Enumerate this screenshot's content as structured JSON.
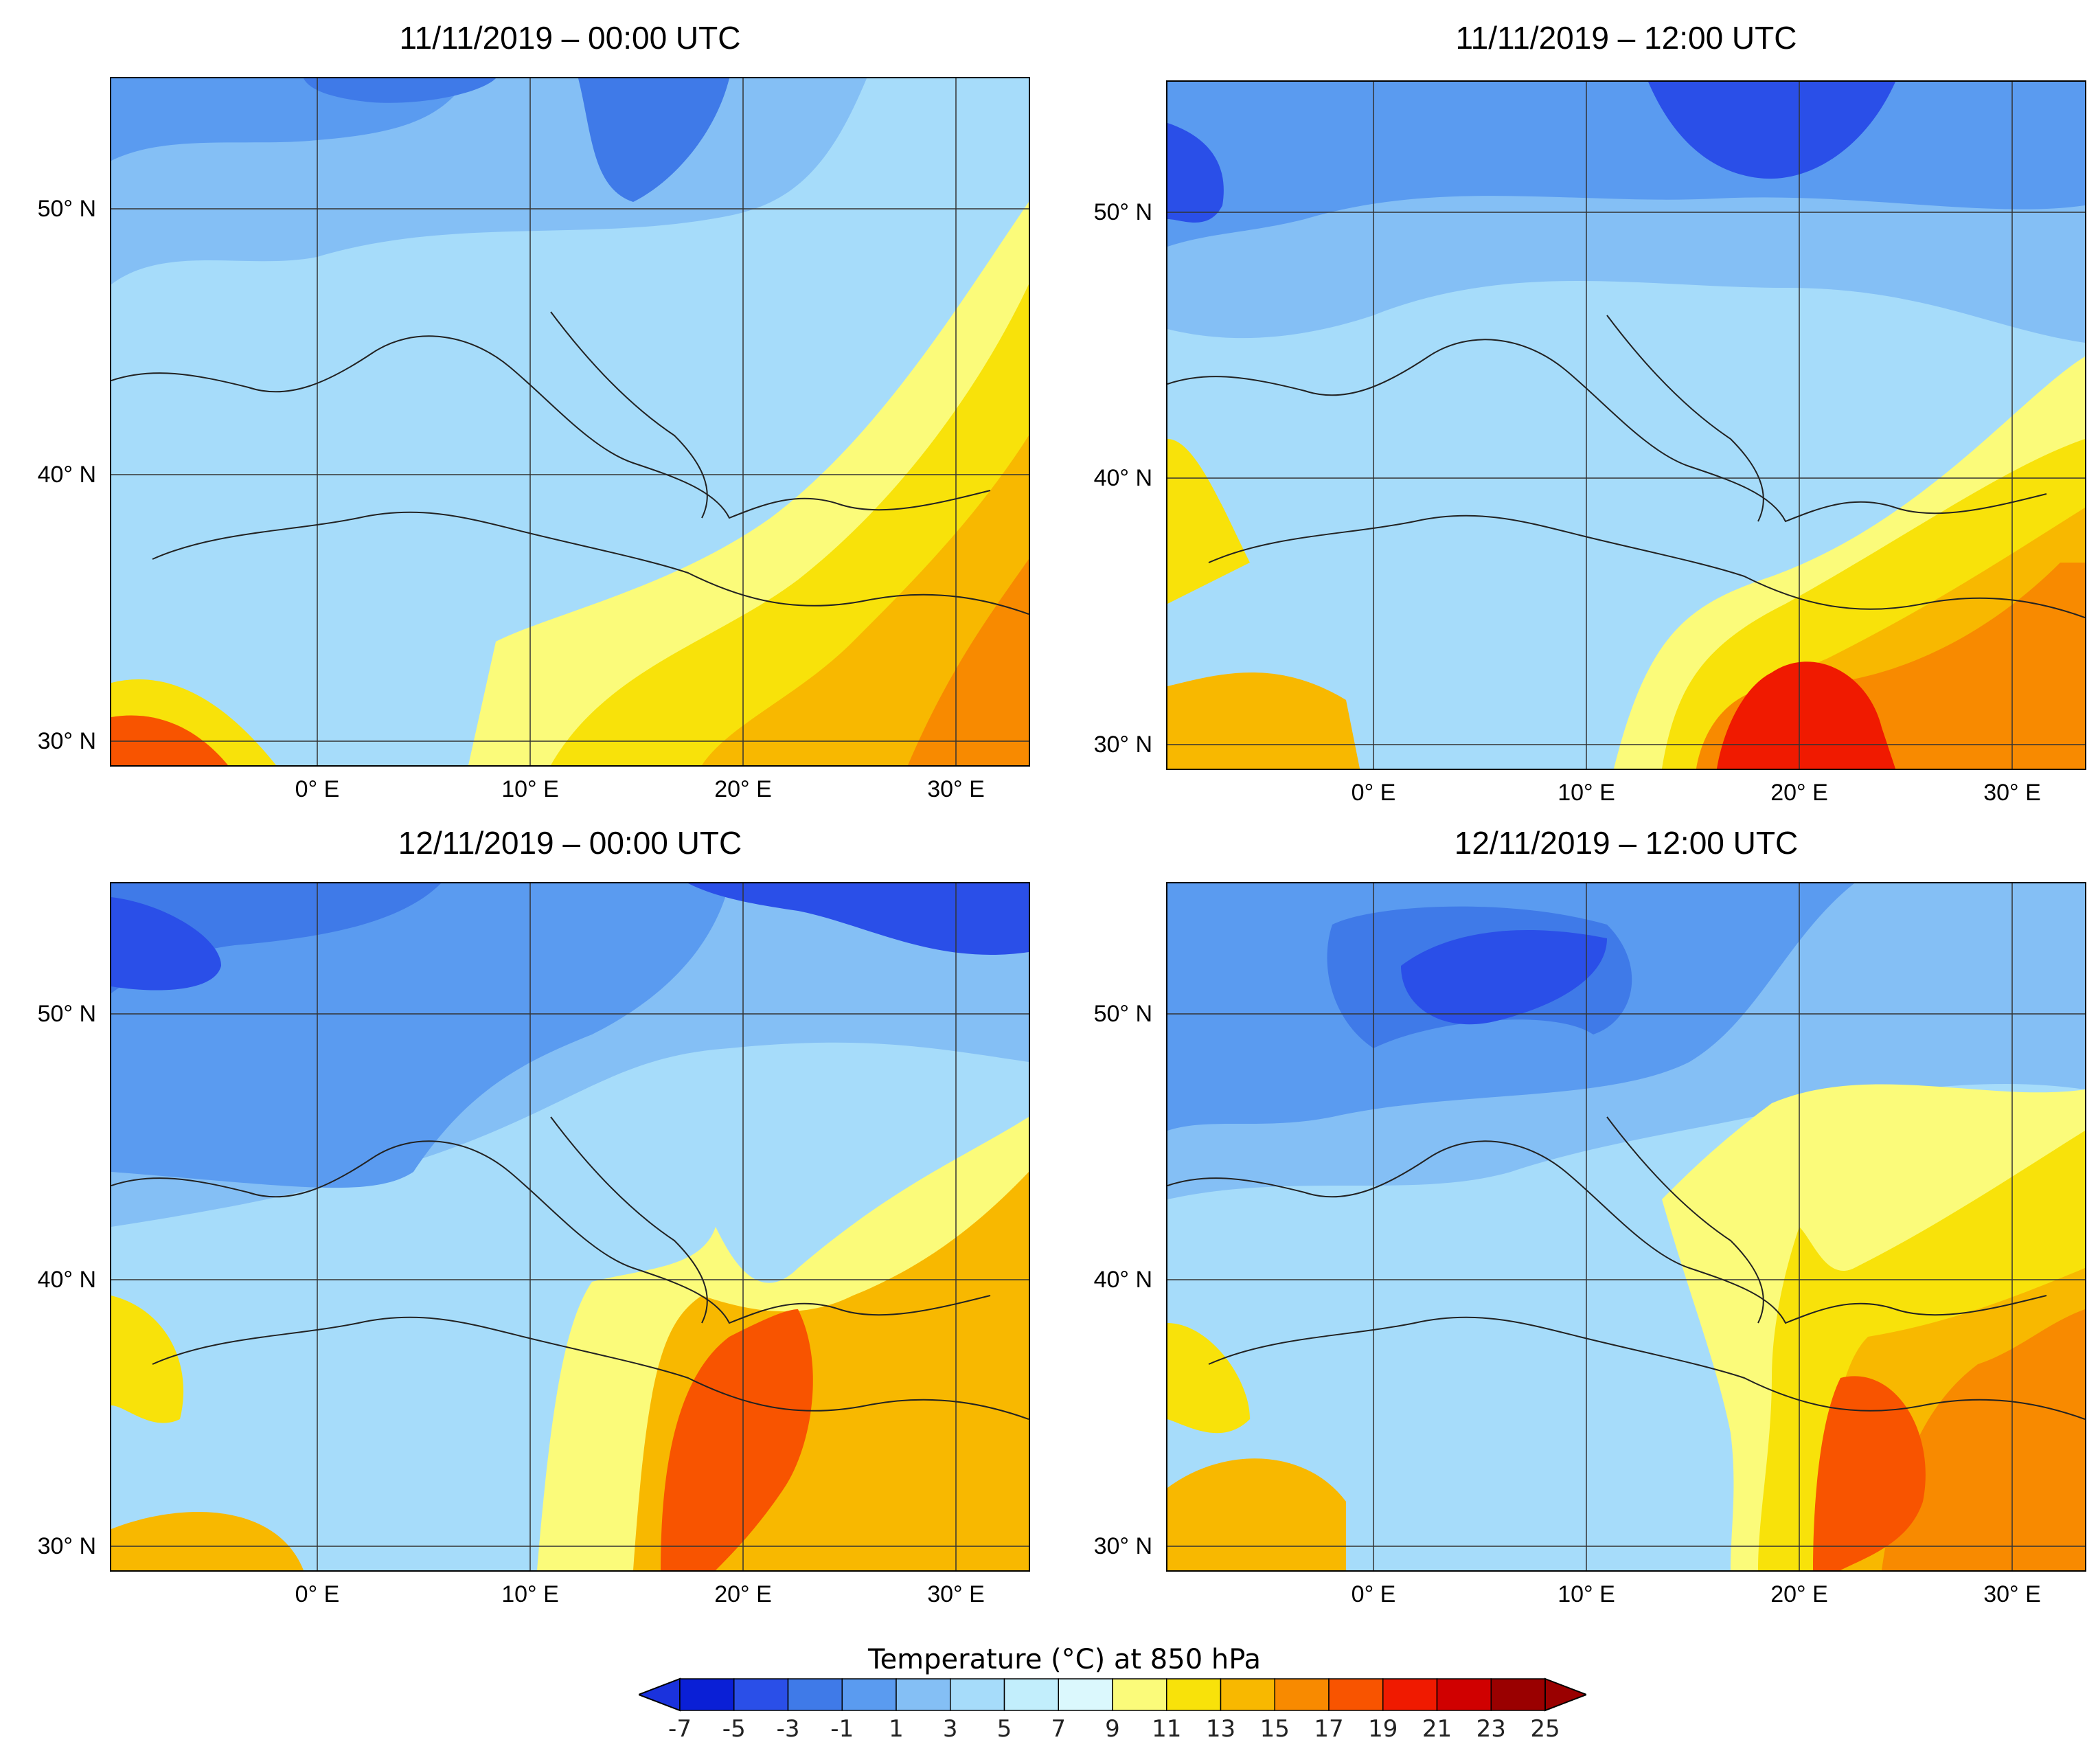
{
  "panels": [
    {
      "title": "11/11/2019 – 00:00 UTC"
    },
    {
      "title": "11/11/2019 – 12:00 UTC"
    },
    {
      "title": "12/11/2019 – 00:00 UTC"
    },
    {
      "title": "12/11/2019 – 12:00 UTC"
    }
  ],
  "lat_labels": [
    "50° N",
    "40° N",
    "30° N"
  ],
  "lon_labels": [
    "0° E",
    "10° E",
    "20° E",
    "30° E"
  ],
  "legend": {
    "title": "Temperature (°C) at 850 hPa",
    "ticks": [
      "-7",
      "-5",
      "-3",
      "-1",
      "1",
      "3",
      "5",
      "7",
      "9",
      "11",
      "13",
      "15",
      "17",
      "19",
      "21",
      "23",
      "25"
    ],
    "colors": [
      "#0a1fd6",
      "#2a4fe8",
      "#3f7ae8",
      "#5a9bf0",
      "#84bff5",
      "#a6dcfa",
      "#c2eefc",
      "#dbf8fd",
      "#fbfb7a",
      "#f8e20a",
      "#f8b800",
      "#f88a00",
      "#f85400",
      "#f01a00",
      "#d00000",
      "#9a0000"
    ],
    "under_color": "#1a32dd",
    "over_color": "#9a0000"
  }
}
